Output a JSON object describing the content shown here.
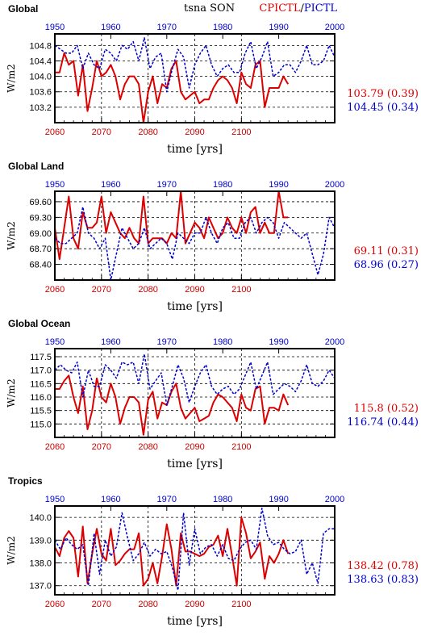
{
  "header": {
    "variable_label": "tsna SON",
    "exp1_label": "CPICTL",
    "separator": "/",
    "exp2_label": "PICTL"
  },
  "colors": {
    "exp1": "#dd0000",
    "exp2": "#0000cc"
  },
  "chart_data": [
    {
      "type": "line",
      "title": "Global",
      "xlabel": "time [yrs]",
      "ylabel": "W/m2",
      "x_bottom_ticks": [
        "2060",
        "2070",
        "2080",
        "2090",
        "2100"
      ],
      "x_top_ticks": [
        "1950",
        "1960",
        "1970",
        "1980",
        "1990",
        "2000"
      ],
      "y_ticks": [
        "104.8",
        "104.4",
        "104.0",
        "103.6",
        "103.2"
      ],
      "ylim": [
        102.8,
        105.1
      ],
      "grid": true,
      "stats": {
        "exp1": "103.79 (0.39)",
        "exp2": "104.45 (0.34)"
      },
      "series": [
        {
          "name": "CPICTL",
          "axis": "bottom",
          "x_start": 2060,
          "values": [
            104.1,
            104.1,
            104.6,
            104.3,
            104.4,
            103.5,
            104.3,
            103.1,
            103.7,
            104.4,
            104.0,
            104.1,
            104.3,
            104.0,
            103.4,
            103.8,
            104.0,
            104.0,
            103.8,
            102.8,
            103.6,
            104.0,
            103.3,
            103.8,
            103.7,
            104.2,
            104.4,
            103.6,
            103.4,
            103.5,
            103.6,
            103.3,
            103.4,
            103.4,
            103.7,
            103.9,
            104.0,
            103.9,
            103.7,
            103.3,
            104.1,
            103.8,
            103.7,
            104.3,
            104.4,
            103.2,
            103.7,
            103.7,
            103.7,
            104.0,
            103.8
          ]
        },
        {
          "name": "PICTL",
          "axis": "top",
          "x_start": 1950,
          "values": [
            104.8,
            104.7,
            104.6,
            104.6,
            104.8,
            104.2,
            104.6,
            104.3,
            104.2,
            104.7,
            104.6,
            104.4,
            104.8,
            104.7,
            104.9,
            104.4,
            105.0,
            104.2,
            104.5,
            104.6,
            103.6,
            104.2,
            104.7,
            104.5,
            103.7,
            104.3,
            104.6,
            104.8,
            104.3,
            104.0,
            104.2,
            104.3,
            104.1,
            104.1,
            104.6,
            104.9,
            104.2,
            104.5,
            104.9,
            104.0,
            104.1,
            104.3,
            104.3,
            104.1,
            104.4,
            104.8,
            104.3,
            104.3,
            104.4,
            104.8,
            104.5
          ]
        }
      ]
    },
    {
      "type": "line",
      "title": "Global Land",
      "xlabel": "time [yrs]",
      "ylabel": "W/m2",
      "x_bottom_ticks": [
        "2060",
        "2070",
        "2080",
        "2090",
        "2100"
      ],
      "x_top_ticks": [
        "1950",
        "1960",
        "1970",
        "1980",
        "1990",
        "2000"
      ],
      "y_ticks": [
        "69.60",
        "69.30",
        "69.00",
        "68.70",
        "68.40"
      ],
      "ylim": [
        68.1,
        69.8
      ],
      "grid": true,
      "stats": {
        "exp1": "69.11 (0.31)",
        "exp2": "68.96 (0.27)"
      },
      "series": [
        {
          "name": "CPICTL",
          "axis": "bottom",
          "x_start": 2060,
          "values": [
            69.1,
            68.5,
            69.1,
            69.7,
            68.9,
            68.7,
            69.4,
            69.1,
            69.1,
            69.2,
            69.7,
            69.0,
            69.4,
            69.2,
            69.0,
            68.9,
            69.1,
            68.9,
            68.8,
            69.7,
            68.8,
            68.9,
            68.9,
            68.9,
            68.8,
            69.0,
            68.9,
            69.8,
            68.8,
            69.0,
            69.2,
            69.1,
            68.9,
            69.3,
            69.1,
            68.9,
            69.0,
            69.3,
            69.1,
            69.0,
            69.3,
            69.0,
            69.4,
            69.5,
            69.0,
            69.2,
            69.0,
            69.0,
            69.8,
            69.3,
            69.3
          ]
        },
        {
          "name": "PICTL",
          "axis": "top",
          "x_start": 1950,
          "values": [
            68.9,
            68.8,
            68.8,
            68.9,
            69.0,
            69.5,
            69.0,
            68.9,
            68.7,
            68.9,
            68.1,
            68.6,
            69.1,
            68.9,
            68.7,
            68.8,
            69.1,
            68.7,
            68.8,
            68.9,
            68.8,
            68.5,
            69.0,
            68.9,
            68.8,
            69.0,
            69.0,
            69.3,
            69.0,
            68.8,
            69.1,
            69.2,
            68.9,
            68.9,
            69.2,
            69.3,
            69.0,
            69.2,
            69.3,
            69.2,
            68.9,
            69.2,
            69.1,
            69.0,
            68.9,
            69.0,
            68.6,
            68.2,
            68.6,
            69.3,
            69.1
          ]
        }
      ]
    },
    {
      "type": "line",
      "title": "Global Ocean",
      "xlabel": "time [yrs]",
      "ylabel": "W/m2",
      "x_bottom_ticks": [
        "2060",
        "2070",
        "2080",
        "2090",
        "2100"
      ],
      "x_top_ticks": [
        "1950",
        "1960",
        "1970",
        "1980",
        "1990",
        "2000"
      ],
      "y_ticks": [
        "117.5",
        "117.0",
        "116.5",
        "116.0",
        "115.5",
        "115.0"
      ],
      "ylim": [
        114.5,
        117.8
      ],
      "grid": true,
      "stats": {
        "exp1": "115.8 (0.52)",
        "exp2": "116.74 (0.44)"
      },
      "series": [
        {
          "name": "CPICTL",
          "axis": "bottom",
          "x_start": 2060,
          "values": [
            116.3,
            116.3,
            116.6,
            116.8,
            116.0,
            115.4,
            116.4,
            114.8,
            115.5,
            116.7,
            116.0,
            115.8,
            116.5,
            116.0,
            115.0,
            115.6,
            116.0,
            116.0,
            115.8,
            114.6,
            115.9,
            116.2,
            115.2,
            115.8,
            115.7,
            116.2,
            116.5,
            115.6,
            115.2,
            115.4,
            115.6,
            115.1,
            115.2,
            115.3,
            115.8,
            116.1,
            116.0,
            115.8,
            115.6,
            115.1,
            116.1,
            115.6,
            115.5,
            116.3,
            116.4,
            115.0,
            115.6,
            115.6,
            115.5,
            116.1,
            115.7
          ]
        },
        {
          "name": "PICTL",
          "axis": "top",
          "x_start": 1950,
          "values": [
            117.0,
            117.2,
            117.0,
            116.9,
            117.3,
            116.0,
            117.0,
            116.4,
            116.4,
            117.2,
            117.0,
            116.7,
            117.3,
            117.2,
            117.3,
            116.5,
            117.6,
            116.3,
            116.6,
            116.9,
            115.7,
            116.4,
            117.2,
            116.7,
            115.8,
            116.4,
            116.9,
            117.2,
            116.4,
            116.1,
            116.3,
            116.4,
            116.1,
            116.3,
            116.8,
            117.3,
            116.3,
            116.8,
            117.3,
            116.1,
            116.3,
            116.5,
            116.4,
            116.2,
            116.6,
            117.2,
            116.5,
            116.4,
            116.6,
            117.0,
            116.7
          ]
        }
      ]
    },
    {
      "type": "line",
      "title": "Tropics",
      "xlabel": "time [yrs]",
      "ylabel": "W/m2",
      "x_bottom_ticks": [
        "2060",
        "2070",
        "2080",
        "2090",
        "2100"
      ],
      "x_top_ticks": [
        "1950",
        "1960",
        "1970",
        "1980",
        "1990",
        "2000"
      ],
      "y_ticks": [
        "140.0",
        "139.0",
        "138.0",
        "137.0"
      ],
      "ylim": [
        136.6,
        140.5
      ],
      "grid": true,
      "stats": {
        "exp1": "138.42 (0.78)",
        "exp2": "138.63 (0.83)"
      },
      "series": [
        {
          "name": "CPICTL",
          "axis": "bottom",
          "x_start": 2060,
          "values": [
            138.7,
            138.3,
            139.1,
            139.4,
            139.1,
            137.4,
            139.6,
            137.1,
            138.4,
            139.5,
            138.4,
            138.1,
            139.5,
            137.9,
            138.1,
            138.4,
            138.6,
            138.6,
            139.3,
            137.0,
            137.3,
            138.0,
            137.1,
            138.3,
            139.7,
            138.6,
            137.0,
            139.3,
            138.5,
            138.5,
            138.4,
            138.3,
            138.4,
            138.7,
            138.8,
            139.2,
            138.3,
            139.5,
            138.3,
            137.0,
            140.0,
            139.3,
            138.2,
            138.5,
            138.9,
            137.3,
            138.3,
            138.0,
            138.4,
            139.0,
            138.4
          ]
        },
        {
          "name": "PICTL",
          "axis": "top",
          "x_start": 1950,
          "values": [
            139.0,
            138.6,
            139.1,
            138.8,
            138.6,
            138.8,
            137.0,
            139.3,
            137.5,
            139.0,
            138.3,
            138.7,
            140.2,
            139.1,
            138.1,
            138.4,
            138.9,
            138.3,
            138.6,
            138.4,
            138.5,
            137.8,
            136.8,
            140.2,
            137.9,
            139.5,
            138.4,
            138.7,
            138.8,
            138.3,
            138.8,
            138.2,
            138.1,
            138.6,
            138.9,
            139.0,
            138.6,
            140.4,
            139.2,
            138.8,
            138.9,
            138.6,
            138.4,
            138.5,
            139.0,
            137.5,
            138.0,
            137.1,
            139.3,
            139.5,
            139.5
          ]
        }
      ]
    }
  ]
}
